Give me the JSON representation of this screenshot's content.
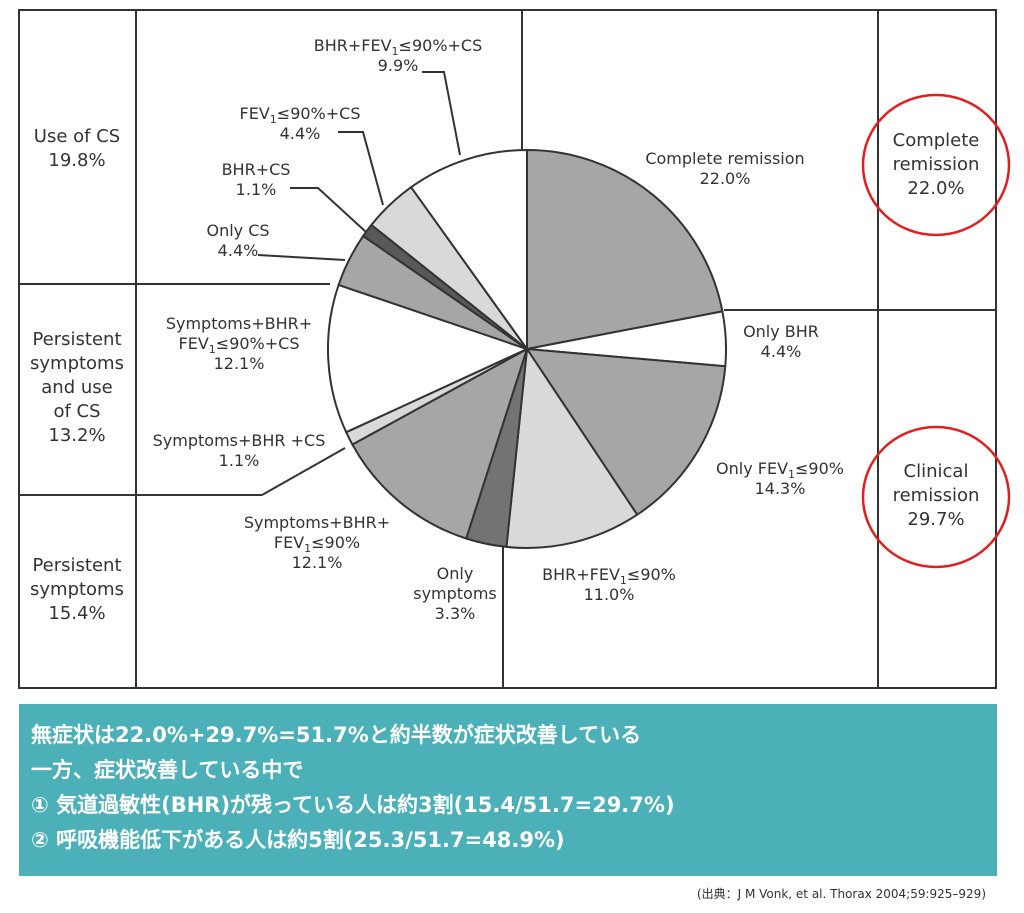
{
  "chart_data": {
    "type": "pie",
    "slices": [
      {
        "label": "Complete remission",
        "value": 22.0,
        "color": "#a6a6a6"
      },
      {
        "label": "Only BHR",
        "value": 4.4,
        "color": "#ffffff"
      },
      {
        "label": "Only FEV1≤90%",
        "value": 14.3,
        "color": "#a6a6a6"
      },
      {
        "label": "BHR+FEV1≤90%",
        "value": 11.0,
        "color": "#d9d9d9"
      },
      {
        "label": "Only symptoms",
        "value": 3.3,
        "color": "#737373"
      },
      {
        "label": "Symptoms+BHR+FEV1≤90%",
        "value": 12.1,
        "color": "#a6a6a6"
      },
      {
        "label": "Symptoms+BHR +CS",
        "value": 1.1,
        "color": "#d9d9d9"
      },
      {
        "label": "Symptoms+BHR+FEV1≤90%+CS",
        "value": 12.1,
        "color": "#ffffff"
      },
      {
        "label": "Only CS",
        "value": 4.4,
        "color": "#a6a6a6"
      },
      {
        "label": "BHR+CS",
        "value": 1.1,
        "color": "#595959"
      },
      {
        "label": "FEV1≤90%+CS",
        "value": 4.4,
        "color": "#d9d9d9"
      },
      {
        "label": "BHR+FEV1≤90%+CS",
        "value": 9.9,
        "color": "#ffffff"
      }
    ],
    "labels": [
      {
        "lines": [
          "Complete remission",
          "22.0%"
        ]
      },
      {
        "lines": [
          "Only BHR",
          "4.4%"
        ]
      },
      {
        "lines": [
          "Only FEV",
          "14.3%"
        ]
      },
      {
        "lines": [
          "BHR+FEV",
          "11.0%"
        ]
      },
      {
        "lines": [
          "Only",
          "symptoms",
          "3.3%"
        ]
      },
      {
        "lines": [
          "Symptoms+BHR+",
          "FEV",
          "12.1%"
        ]
      },
      {
        "lines": [
          "Symptoms+BHR +CS",
          "1.1%"
        ]
      },
      {
        "lines": [
          "Symptoms+BHR+",
          "FEV",
          "12.1%"
        ]
      },
      {
        "lines": [
          "Only CS",
          "4.4%"
        ]
      },
      {
        "lines": [
          "BHR+CS",
          "1.1%"
        ]
      },
      {
        "lines": [
          "FEV",
          "4.4%"
        ]
      },
      {
        "lines": [
          "BHR+FEV",
          "9.9%"
        ]
      }
    ],
    "fev_suffix": {
      "sub": "1",
      "le90": "≤90%",
      "le90cs": "≤90%+CS"
    },
    "groups": {
      "left": [
        {
          "lines": [
            "Use of CS",
            "19.8%"
          ]
        },
        {
          "lines": [
            "Persistent",
            "symptoms",
            "and use",
            "of CS",
            "13.2%"
          ]
        },
        {
          "lines": [
            "Persistent",
            "symptoms",
            "15.4%"
          ]
        }
      ],
      "right": [
        {
          "lines": [
            "Complete",
            "remission",
            "22.0%"
          ]
        },
        {
          "lines": [
            "Clinical",
            "remission",
            "29.7%"
          ]
        }
      ]
    },
    "highlight_color": "#e02020"
  },
  "summary": {
    "lines": [
      "無症状は22.0%+29.7%=51.7%と約半数が症状改善している",
      "一方、症状改善している中で",
      "① 気道過敏性(BHR)が残っている人は約3割(15.4/51.7=29.7%)",
      "② 呼吸機能低下がある人は約5割(25.3/51.7=48.9%)"
    ],
    "background": "#4bb0b8"
  },
  "source": "(出典：J M Vonk, et al. Thorax 2004;59:925–929)"
}
